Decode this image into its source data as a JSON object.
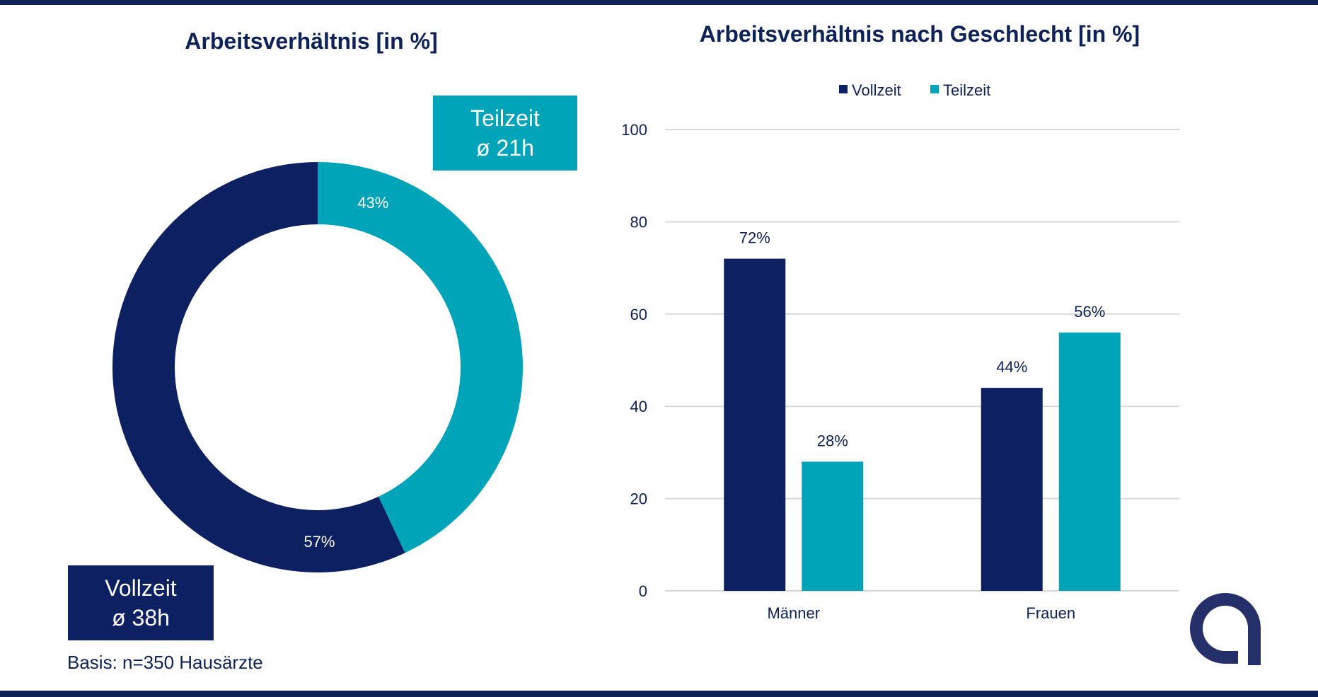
{
  "colors": {
    "vollzeit": "#0d2062",
    "teilzeit": "#00a4b8",
    "title": "#0f2257",
    "grid": "#d9d9d9"
  },
  "footnote": "Basis: n=350 Hausärzte",
  "callouts": {
    "teilzeit": {
      "label": "Teilzeit",
      "hours": "ø 21h"
    },
    "vollzeit": {
      "label": "Vollzeit",
      "hours": "ø 38h"
    }
  },
  "logo_icon": "stylized-a-logo-icon",
  "chart_data": [
    {
      "type": "pie",
      "title": "Arbeitsverhältnis [in %]",
      "categories": [
        "Teilzeit",
        "Vollzeit"
      ],
      "values": [
        43,
        57
      ],
      "data_labels": [
        "43%",
        "57%"
      ]
    },
    {
      "type": "bar",
      "title": "Arbeitsverhältnis nach Geschlecht [in %]",
      "categories": [
        "Männer",
        "Frauen"
      ],
      "series": [
        {
          "name": "Vollzeit",
          "values": [
            72,
            44
          ],
          "data_labels": [
            "72%",
            "44%"
          ]
        },
        {
          "name": "Teilzeit",
          "values": [
            28,
            56
          ],
          "data_labels": [
            "28%",
            "56%"
          ]
        }
      ],
      "ylim": [
        0,
        100
      ],
      "yticks": [
        "0",
        "20",
        "40",
        "60",
        "80",
        "100"
      ],
      "legend_position": "top",
      "grid": true
    }
  ]
}
